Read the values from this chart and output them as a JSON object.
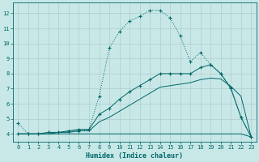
{
  "bg_color": "#c8e8e8",
  "grid_color": "#b0cccc",
  "line_color": "#006666",
  "xlabel": "Humidex (Indice chaleur)",
  "xlim": [
    -0.5,
    23.5
  ],
  "ylim": [
    3.5,
    12.7
  ],
  "yticks": [
    4,
    5,
    6,
    7,
    8,
    9,
    10,
    11,
    12
  ],
  "xticks": [
    0,
    1,
    2,
    3,
    4,
    5,
    6,
    7,
    8,
    9,
    10,
    11,
    12,
    13,
    14,
    15,
    16,
    17,
    18,
    19,
    20,
    21,
    22,
    23
  ],
  "curve1_x": [
    0,
    1,
    2,
    3,
    4,
    5,
    6,
    7,
    8,
    9,
    10,
    11,
    12,
    13,
    14,
    15,
    16,
    17,
    18,
    19,
    20,
    21,
    22,
    23
  ],
  "curve1_y": [
    4.7,
    4.0,
    4.0,
    4.1,
    4.1,
    4.2,
    4.2,
    4.3,
    6.5,
    9.7,
    10.8,
    11.5,
    11.8,
    12.2,
    12.2,
    11.7,
    10.5,
    8.8,
    9.4,
    8.6,
    8.0,
    7.1,
    5.1,
    3.8
  ],
  "curve2_x": [
    0,
    1,
    2,
    3,
    4,
    5,
    6,
    7,
    8,
    9,
    10,
    11,
    12,
    13,
    14,
    15,
    16,
    17,
    18,
    19,
    20,
    21,
    22,
    23
  ],
  "curve2_y": [
    4.0,
    4.0,
    4.0,
    4.1,
    4.1,
    4.2,
    4.3,
    4.3,
    5.3,
    5.7,
    6.3,
    6.8,
    7.2,
    7.6,
    8.0,
    8.0,
    8.0,
    8.0,
    8.4,
    8.6,
    8.0,
    7.0,
    5.1,
    3.8
  ],
  "curve3_x": [
    0,
    1,
    2,
    3,
    4,
    5,
    6,
    7,
    8,
    9,
    10,
    11,
    12,
    13,
    14,
    15,
    16,
    17,
    18,
    19,
    20,
    21,
    22,
    23
  ],
  "curve3_y": [
    4.0,
    4.0,
    4.0,
    4.0,
    4.1,
    4.1,
    4.2,
    4.2,
    4.8,
    5.1,
    5.5,
    5.9,
    6.3,
    6.7,
    7.1,
    7.2,
    7.3,
    7.4,
    7.6,
    7.7,
    7.65,
    7.15,
    6.5,
    3.8
  ],
  "curve4_x": [
    0,
    1,
    2,
    3,
    4,
    5,
    6,
    7,
    8,
    14,
    15,
    16,
    17,
    18,
    19,
    20,
    21,
    22,
    23
  ],
  "curve4_y": [
    4.0,
    4.0,
    4.0,
    4.0,
    4.0,
    4.0,
    4.0,
    4.0,
    4.0,
    4.0,
    4.0,
    4.0,
    4.0,
    4.0,
    4.0,
    4.0,
    4.0,
    4.0,
    3.8
  ]
}
